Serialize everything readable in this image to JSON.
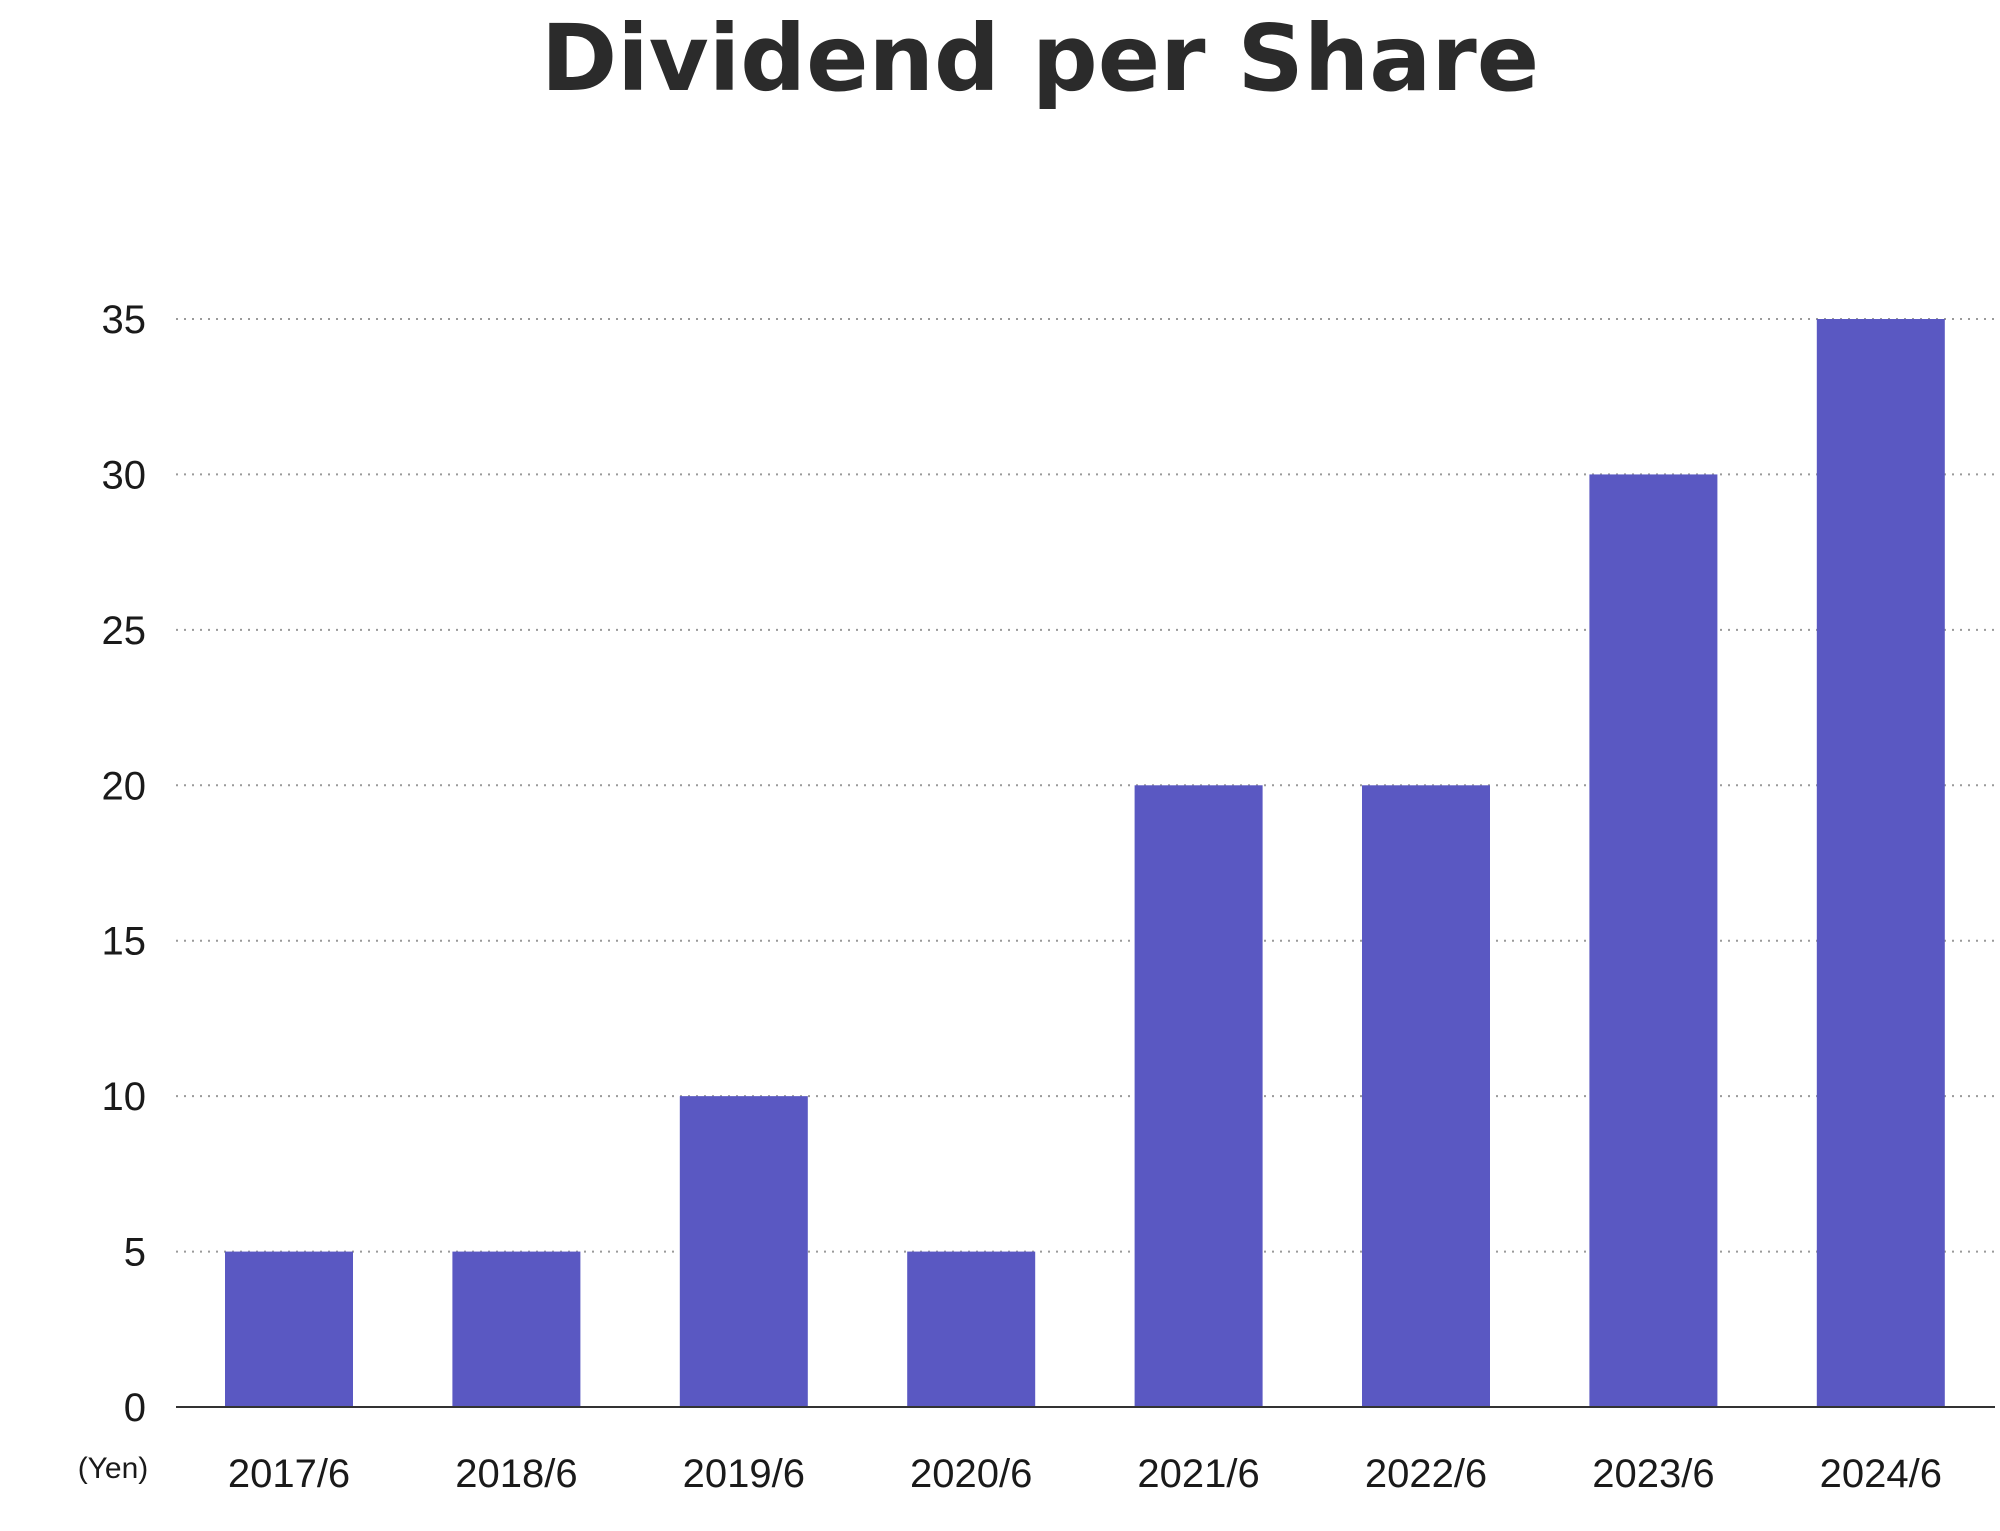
{
  "chart_data": {
    "type": "bar",
    "title": "Dividend per Share",
    "y_unit_label": "(Yen)",
    "categories": [
      "2017/6",
      "2018/6",
      "2019/6",
      "2020/6",
      "2021/6",
      "2022/6",
      "2023/6",
      "2024/6"
    ],
    "values": [
      5,
      5,
      10,
      5,
      20,
      20,
      30,
      35
    ],
    "ylim": [
      0,
      35
    ],
    "y_ticks": [
      0,
      5,
      10,
      15,
      20,
      25,
      30,
      35
    ],
    "grid": true,
    "grid_style": "dotted",
    "bar_color": "#5a58c2",
    "grid_color": "#9a9a9a",
    "axis_color": "#333333",
    "text_color": "#1a1a1a",
    "title_color": "#2b2b2b"
  }
}
